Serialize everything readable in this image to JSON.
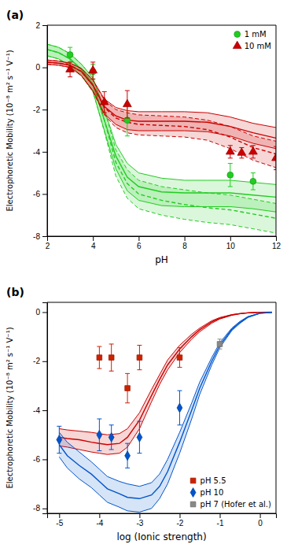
{
  "chart_data": [
    {
      "type": "scatter",
      "title": "(a)",
      "x_label": "pH",
      "y_label": "Electrophoretic Mobility (10⁻⁸ m² s⁻¹ V⁻¹)",
      "xlim": [
        2,
        12
      ],
      "ylim": [
        -8,
        2
      ],
      "xticks": [
        2,
        4,
        6,
        8,
        10,
        12
      ],
      "yticks": [
        -8,
        -6,
        -4,
        -2,
        0,
        2
      ],
      "legend": "upper right",
      "series": [
        {
          "type": "band",
          "color": "#22cc22",
          "line_style": "solid",
          "x": [
            2.0,
            2.5,
            3.0,
            3.5,
            4.0,
            4.5,
            5.0,
            5.5,
            6.0,
            7.0,
            8.0,
            9.0,
            10.0,
            11.0,
            12.0
          ],
          "upper": [
            1.1,
            0.95,
            0.65,
            0.15,
            -0.5,
            -2.0,
            -3.65,
            -4.55,
            -5.0,
            -5.25,
            -5.35,
            -5.35,
            -5.35,
            -5.45,
            -5.55
          ],
          "values": [
            0.85,
            0.7,
            0.4,
            -0.1,
            -0.8,
            -2.5,
            -4.2,
            -5.2,
            -5.65,
            -5.9,
            -5.95,
            -5.95,
            -5.95,
            -6.05,
            -6.15
          ],
          "lower": [
            0.55,
            0.4,
            0.1,
            -0.4,
            -1.15,
            -3.0,
            -4.8,
            -5.85,
            -6.3,
            -6.55,
            -6.6,
            -6.6,
            -6.6,
            -6.7,
            -6.85
          ]
        },
        {
          "type": "band",
          "color": "#22cc22",
          "line_style": "dashed",
          "x": [
            2.0,
            2.5,
            3.0,
            3.5,
            4.0,
            4.5,
            5.0,
            5.5,
            6.0,
            7.0,
            8.0,
            9.0,
            10.0,
            11.0,
            12.0
          ],
          "upper": [
            1.1,
            0.95,
            0.65,
            0.15,
            -0.5,
            -2.0,
            -3.9,
            -4.85,
            -5.35,
            -5.65,
            -5.8,
            -5.95,
            -6.05,
            -6.25,
            -6.45
          ],
          "values": [
            0.85,
            0.7,
            0.4,
            -0.1,
            -0.8,
            -2.5,
            -4.5,
            -5.5,
            -6.0,
            -6.3,
            -6.5,
            -6.65,
            -6.75,
            -6.95,
            -7.15
          ],
          "lower": [
            0.55,
            0.4,
            0.1,
            -0.4,
            -1.15,
            -3.05,
            -5.15,
            -6.2,
            -6.7,
            -7.0,
            -7.2,
            -7.35,
            -7.45,
            -7.65,
            -7.85
          ]
        },
        {
          "type": "band",
          "color": "#cc0000",
          "line_style": "solid",
          "x": [
            2.0,
            2.5,
            3.0,
            3.5,
            4.0,
            4.5,
            5.0,
            5.5,
            6.0,
            7.0,
            8.0,
            9.0,
            10.0,
            11.0,
            12.0
          ],
          "upper": [
            0.35,
            0.3,
            0.2,
            -0.05,
            -0.6,
            -1.5,
            -1.9,
            -2.05,
            -2.1,
            -2.1,
            -2.1,
            -2.15,
            -2.35,
            -2.65,
            -2.85
          ],
          "values": [
            0.25,
            0.2,
            0.1,
            -0.2,
            -0.85,
            -1.85,
            -2.3,
            -2.5,
            -2.55,
            -2.55,
            -2.55,
            -2.6,
            -2.8,
            -3.1,
            -3.35
          ],
          "lower": [
            0.15,
            0.1,
            0.0,
            -0.4,
            -1.1,
            -2.2,
            -2.7,
            -2.95,
            -3.0,
            -3.0,
            -3.0,
            -3.05,
            -3.25,
            -3.6,
            -3.85
          ]
        },
        {
          "type": "band",
          "color": "#cc0000",
          "line_style": "dashed",
          "x": [
            2.0,
            2.5,
            3.0,
            3.5,
            4.0,
            4.5,
            5.0,
            5.5,
            6.0,
            7.0,
            8.0,
            9.0,
            10.0,
            11.0,
            12.0
          ],
          "upper": [
            0.35,
            0.3,
            0.2,
            -0.05,
            -0.6,
            -1.55,
            -2.0,
            -2.15,
            -2.25,
            -2.3,
            -2.35,
            -2.5,
            -2.8,
            -3.25,
            -3.5
          ],
          "values": [
            0.25,
            0.2,
            0.1,
            -0.2,
            -0.85,
            -1.9,
            -2.4,
            -2.6,
            -2.7,
            -2.75,
            -2.8,
            -2.95,
            -3.3,
            -3.8,
            -4.1
          ],
          "lower": [
            0.15,
            0.1,
            0.0,
            -0.4,
            -1.15,
            -2.25,
            -2.85,
            -3.1,
            -3.2,
            -3.25,
            -3.3,
            -3.45,
            -3.85,
            -4.4,
            -4.75
          ]
        },
        {
          "type": "scatter",
          "name": "1 mM",
          "color": "#22cc22",
          "marker": "circle",
          "x": [
            3.0,
            4.0,
            5.5,
            10.0,
            11.0
          ],
          "values": [
            0.6,
            -0.2,
            -2.5,
            -5.1,
            -5.4
          ],
          "yerr": [
            0.35,
            0.35,
            0.75,
            0.55,
            0.4
          ]
        },
        {
          "type": "scatter",
          "name": "10 mM",
          "color": "#cc0000",
          "marker": "triangle",
          "x": [
            3.0,
            4.0,
            4.5,
            5.5,
            10.0,
            10.5,
            11.0,
            12.0
          ],
          "values": [
            -0.1,
            -0.15,
            -1.65,
            -1.75,
            -4.0,
            -4.05,
            -4.0,
            -4.3
          ],
          "yerr": [
            0.35,
            0.4,
            0.5,
            0.65,
            0.3,
            0.25,
            0.3,
            0.55
          ]
        }
      ]
    },
    {
      "type": "scatter",
      "title": "(b)",
      "x_label": "log (Ionic strength)",
      "y_label": "Electrophoretic Mobility (10⁻⁸ m² s⁻¹ V⁻¹)",
      "xlim": [
        -5.3,
        0.4
      ],
      "ylim": [
        -8.2,
        0.4
      ],
      "xticks": [
        -5,
        -4,
        -3,
        -2,
        -1,
        0
      ],
      "yticks": [
        -8,
        -6,
        -4,
        -2,
        0
      ],
      "legend": "lower right",
      "series": [
        {
          "type": "band",
          "color": "#cc0000",
          "line_style": "solid",
          "x": [
            -5.0,
            -4.8,
            -4.5,
            -4.2,
            -4.0,
            -3.8,
            -3.5,
            -3.3,
            -3.0,
            -2.7,
            -2.5,
            -2.3,
            -2.0,
            -1.7,
            -1.5,
            -1.2,
            -1.0,
            -0.7,
            -0.5,
            -0.3,
            0.0,
            0.3
          ],
          "upper": [
            -4.75,
            -4.8,
            -4.85,
            -4.9,
            -4.95,
            -5.0,
            -4.95,
            -4.75,
            -4.1,
            -3.15,
            -2.55,
            -1.95,
            -1.35,
            -0.9,
            -0.65,
            -0.35,
            -0.22,
            -0.1,
            -0.055,
            -0.025,
            -0.005,
            -0.002
          ],
          "values": [
            -5.1,
            -5.15,
            -5.2,
            -5.3,
            -5.35,
            -5.4,
            -5.35,
            -5.1,
            -4.4,
            -3.4,
            -2.75,
            -2.15,
            -1.5,
            -1.0,
            -0.72,
            -0.4,
            -0.25,
            -0.11,
            -0.06,
            -0.028,
            -0.006,
            -0.002
          ],
          "lower": [
            -5.45,
            -5.5,
            -5.6,
            -5.7,
            -5.75,
            -5.8,
            -5.75,
            -5.5,
            -4.75,
            -3.65,
            -2.95,
            -2.35,
            -1.65,
            -1.1,
            -0.8,
            -0.45,
            -0.28,
            -0.13,
            -0.07,
            -0.032,
            -0.007,
            -0.002
          ]
        },
        {
          "type": "band",
          "color": "#0055cc",
          "line_style": "solid",
          "x": [
            -5.0,
            -4.8,
            -4.5,
            -4.2,
            -4.0,
            -3.8,
            -3.5,
            -3.3,
            -3.0,
            -2.7,
            -2.5,
            -2.3,
            -2.0,
            -1.7,
            -1.5,
            -1.2,
            -1.0,
            -0.7,
            -0.5,
            -0.3,
            0.0,
            0.3
          ],
          "upper": [
            -4.9,
            -5.3,
            -5.7,
            -6.1,
            -6.4,
            -6.7,
            -6.9,
            -7.0,
            -7.1,
            -6.95,
            -6.6,
            -6.0,
            -4.9,
            -3.7,
            -2.85,
            -1.85,
            -1.25,
            -0.65,
            -0.38,
            -0.18,
            -0.04,
            -0.01
          ],
          "values": [
            -5.4,
            -5.85,
            -6.25,
            -6.6,
            -6.9,
            -7.2,
            -7.4,
            -7.55,
            -7.6,
            -7.45,
            -7.1,
            -6.5,
            -5.3,
            -4.0,
            -3.1,
            -2.0,
            -1.35,
            -0.7,
            -0.42,
            -0.2,
            -0.045,
            -0.012
          ],
          "lower": [
            -5.9,
            -6.35,
            -6.8,
            -7.15,
            -7.45,
            -7.75,
            -7.95,
            -8.1,
            -8.15,
            -8.0,
            -7.6,
            -7.0,
            -5.75,
            -4.35,
            -3.35,
            -2.15,
            -1.45,
            -0.75,
            -0.46,
            -0.22,
            -0.05,
            -0.013
          ]
        },
        {
          "type": "scatter",
          "name": "pH 5.5",
          "color": "#cc2200",
          "marker": "square",
          "x": [
            -4.0,
            -3.7,
            -3.3,
            -3.0,
            -2.0
          ],
          "values": [
            -1.85,
            -1.85,
            -3.1,
            -1.85,
            -1.85
          ],
          "yerr": [
            0.45,
            0.55,
            0.6,
            0.5,
            0.4
          ]
        },
        {
          "type": "scatter",
          "name": "pH 10",
          "color": "#0055cc",
          "marker": "diamond",
          "x": [
            -5.0,
            -4.0,
            -3.7,
            -3.3,
            -3.0,
            -2.0
          ],
          "values": [
            -5.2,
            -5.0,
            -5.1,
            -5.85,
            -5.1,
            -3.9
          ],
          "yerr": [
            0.55,
            0.65,
            0.5,
            0.5,
            0.65,
            0.7
          ]
        },
        {
          "type": "scatter",
          "name": "pH 7 (Hofer et al.)",
          "color": "#888888",
          "marker": "square",
          "x": [
            -1.0
          ],
          "values": [
            -1.3
          ],
          "yerr": [
            0.2
          ]
        }
      ]
    }
  ]
}
